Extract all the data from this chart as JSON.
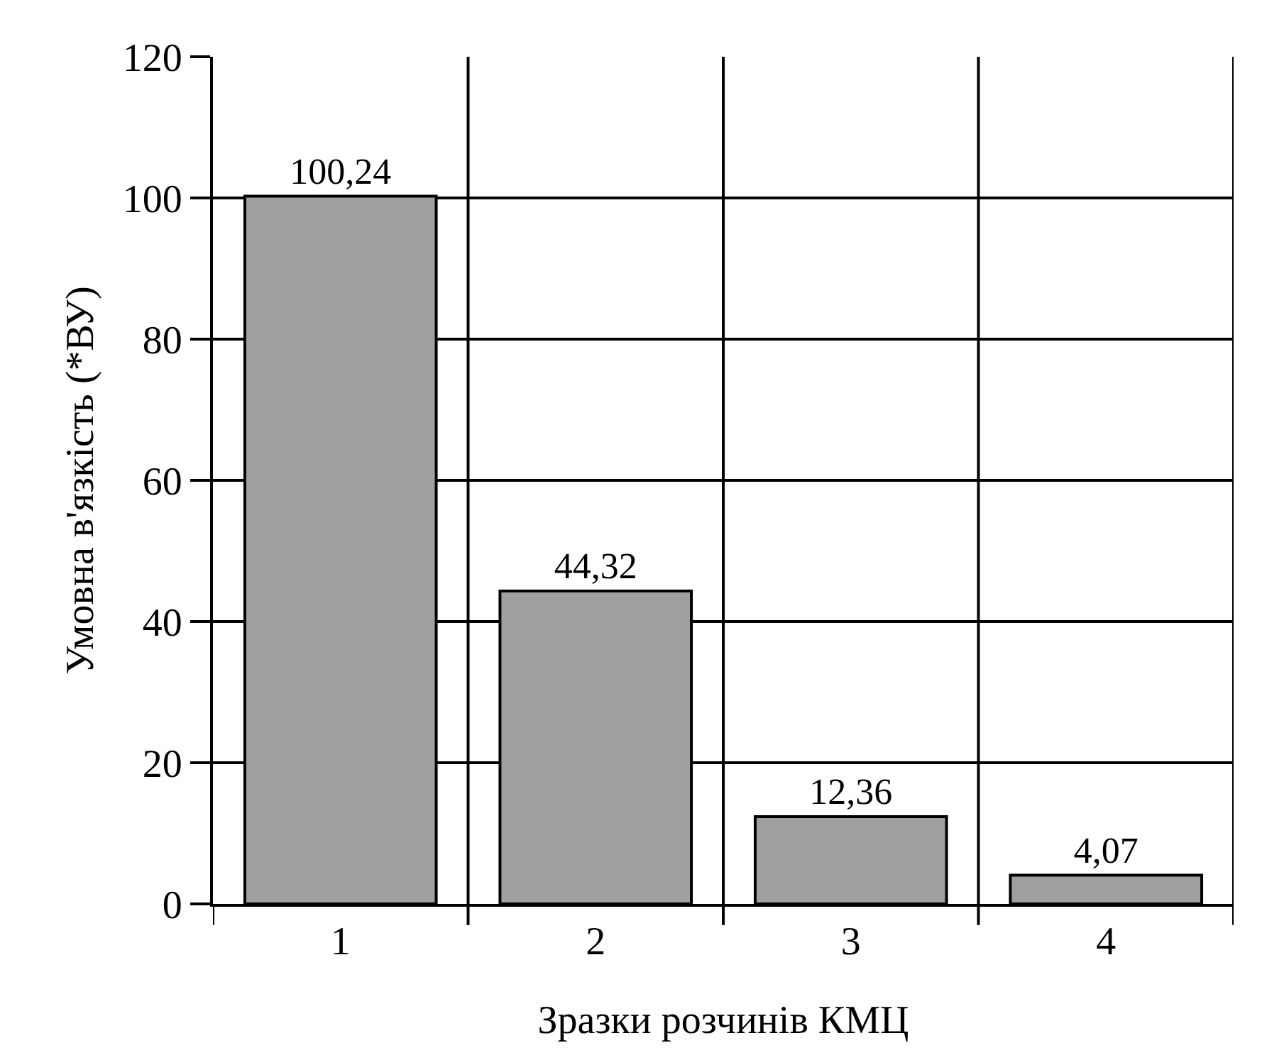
{
  "chart_data": {
    "type": "bar",
    "xlabel": "Зразки розчинів КМЦ",
    "ylabel": "Умовна в'язкість (*ВУ)",
    "categories": [
      "1",
      "2",
      "3",
      "4"
    ],
    "values": [
      100.24,
      44.32,
      12.36,
      4.07
    ],
    "value_labels": [
      "100,24",
      "44,32",
      "12,36",
      "4,07"
    ],
    "color": "#a0a0a0",
    "ylim": [
      0,
      120
    ],
    "yticks": [
      0,
      20,
      40,
      60,
      80,
      100,
      120
    ],
    "grid": true
  }
}
